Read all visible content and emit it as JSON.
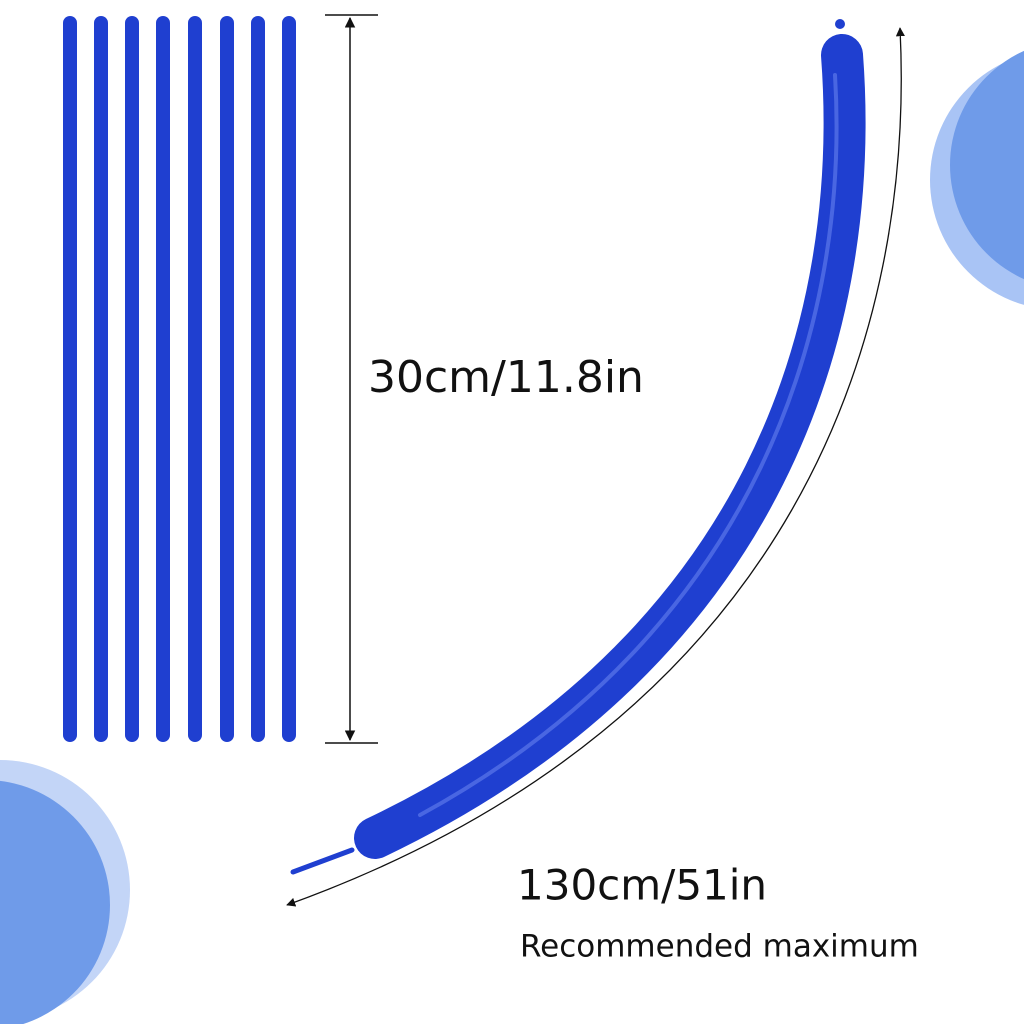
{
  "short_label": "30cm/11.8in",
  "long_label": "130cm/51in",
  "caption": "Recommended maximum"
}
